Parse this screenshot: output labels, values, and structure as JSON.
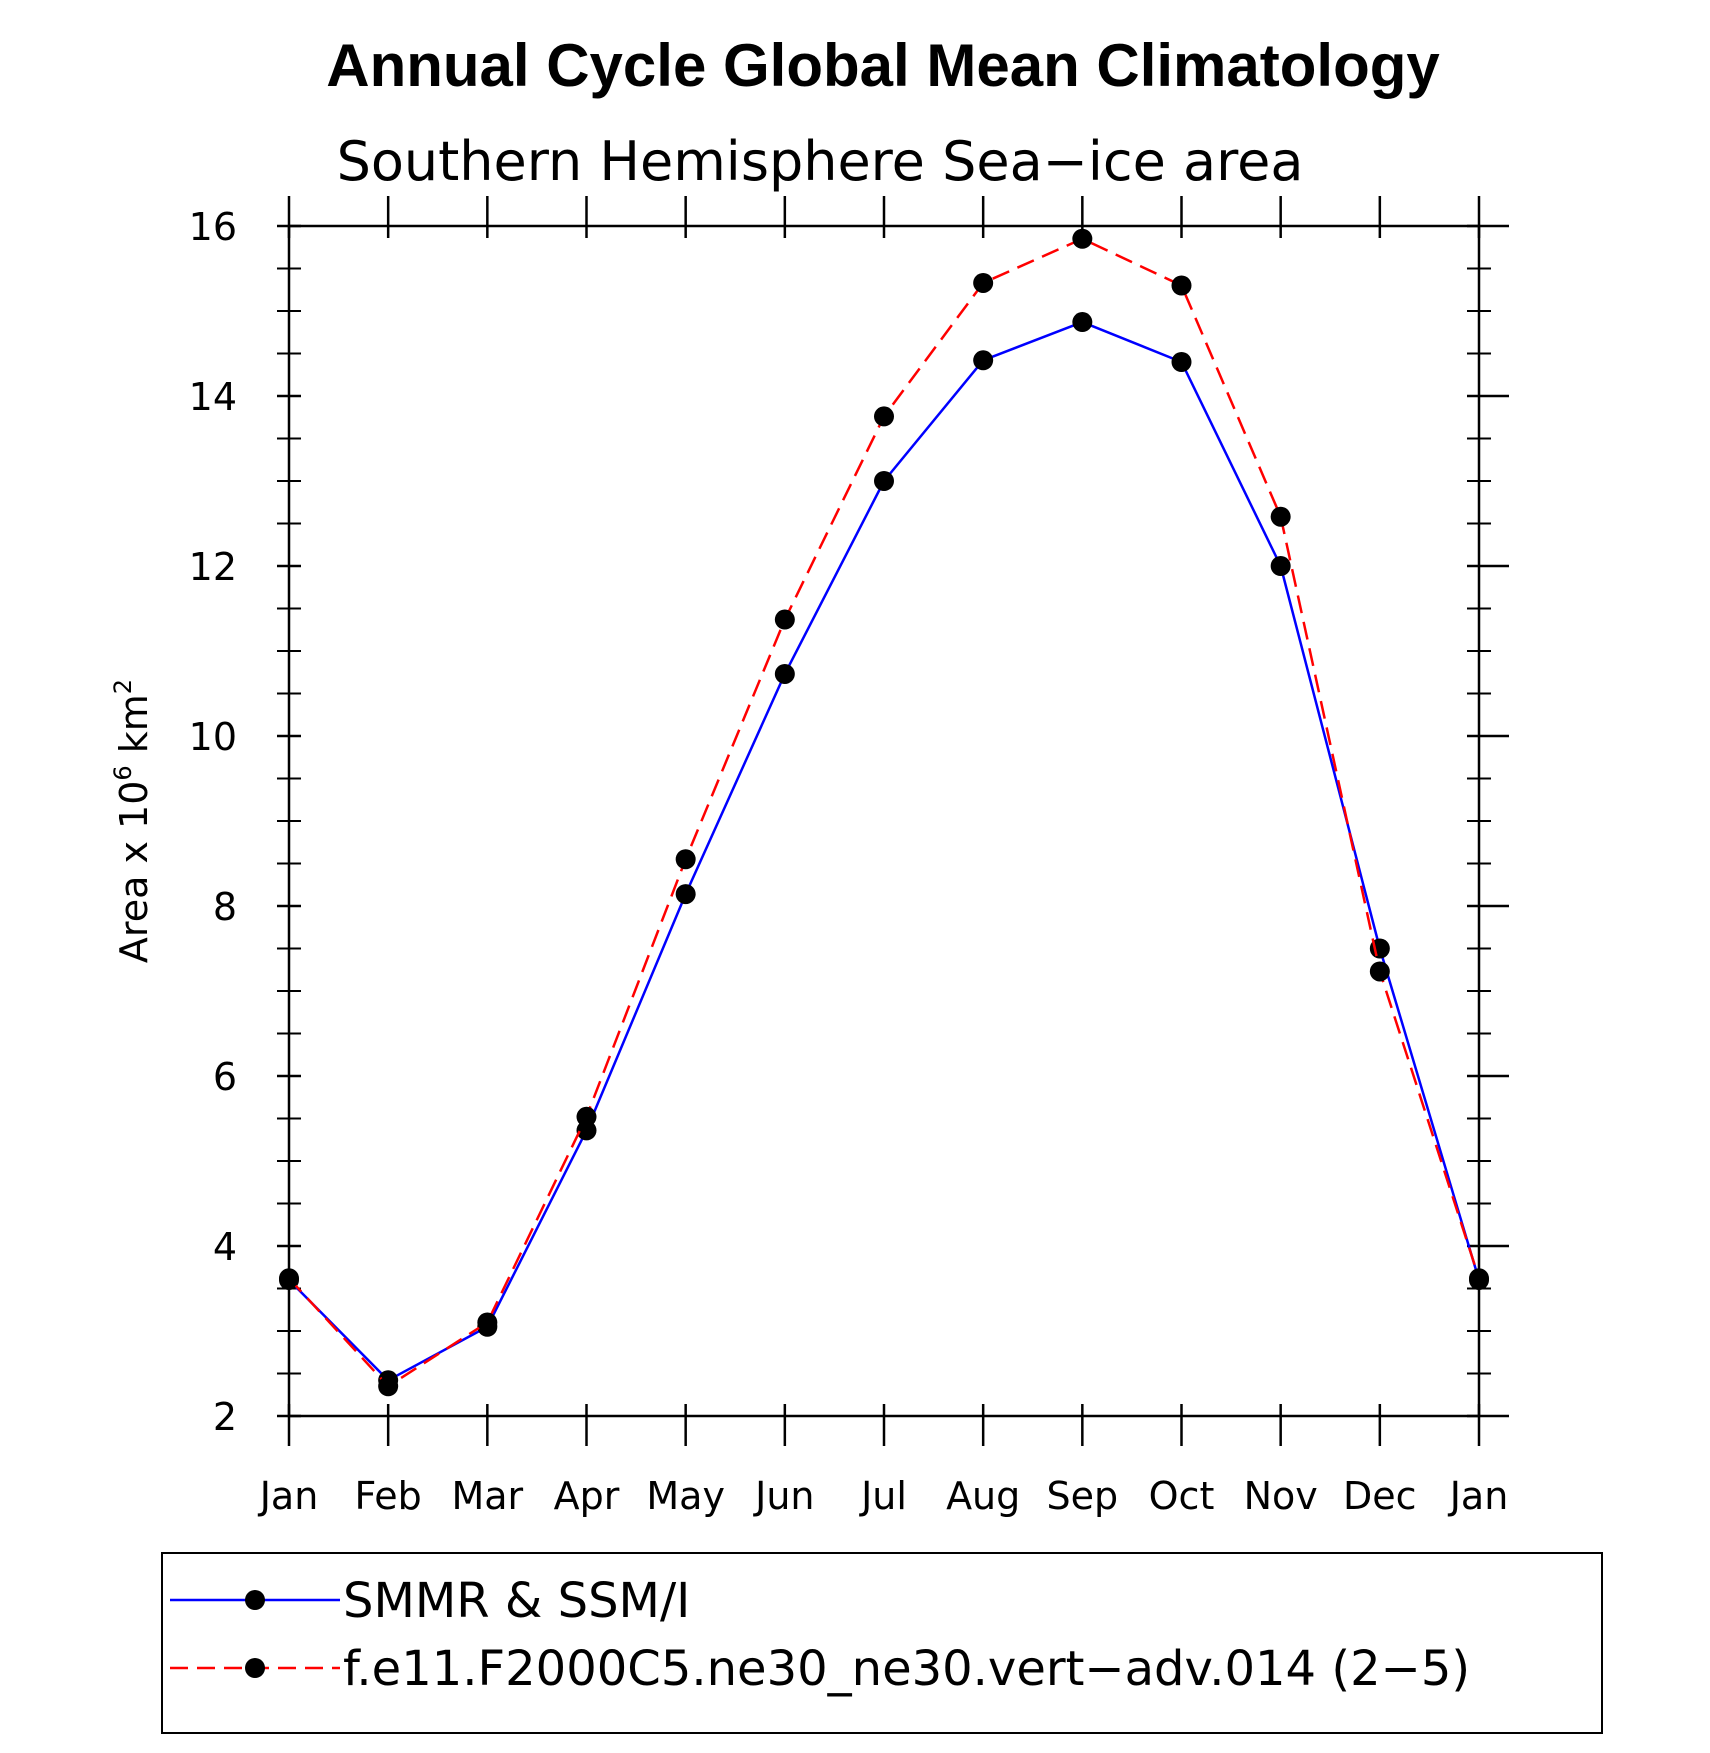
{
  "chart_data": {
    "type": "line",
    "title": "Annual Cycle Global Mean Climatology",
    "subtitle": "Southern Hemisphere Sea−ice area",
    "ylabel": {
      "prefix": "Area x 10",
      "exponent1": "6",
      "mid": " km",
      "exponent2": "2"
    },
    "xlabel": "",
    "categories": [
      "Jan",
      "Feb",
      "Mar",
      "Apr",
      "May",
      "Jun",
      "Jul",
      "Aug",
      "Sep",
      "Oct",
      "Nov",
      "Dec",
      "Jan"
    ],
    "ylim": [
      2,
      16
    ],
    "yticks": [
      2,
      4,
      6,
      8,
      10,
      12,
      14,
      16
    ],
    "yticks_labels": [
      "2",
      "4",
      "6",
      "8",
      "10",
      "12",
      "14",
      "16"
    ],
    "series": [
      {
        "name": "SMMR & SSM/I",
        "color": "#0000ff",
        "dash": "solid",
        "values": [
          3.6,
          2.42,
          3.05,
          5.36,
          8.14,
          10.73,
          13.0,
          14.42,
          14.87,
          14.4,
          12.0,
          7.5,
          3.6
        ]
      },
      {
        "name": "f.e11.F2000C5.ne30_ne30.vert−adv.014 (2−5)",
        "color": "#ff0000",
        "dash": "dashed",
        "values": [
          3.62,
          2.35,
          3.1,
          5.52,
          8.55,
          11.37,
          13.76,
          15.33,
          15.85,
          15.3,
          12.58,
          7.23,
          3.62
        ]
      }
    ],
    "marker_color": "#000000",
    "legend_position": "bottom"
  }
}
